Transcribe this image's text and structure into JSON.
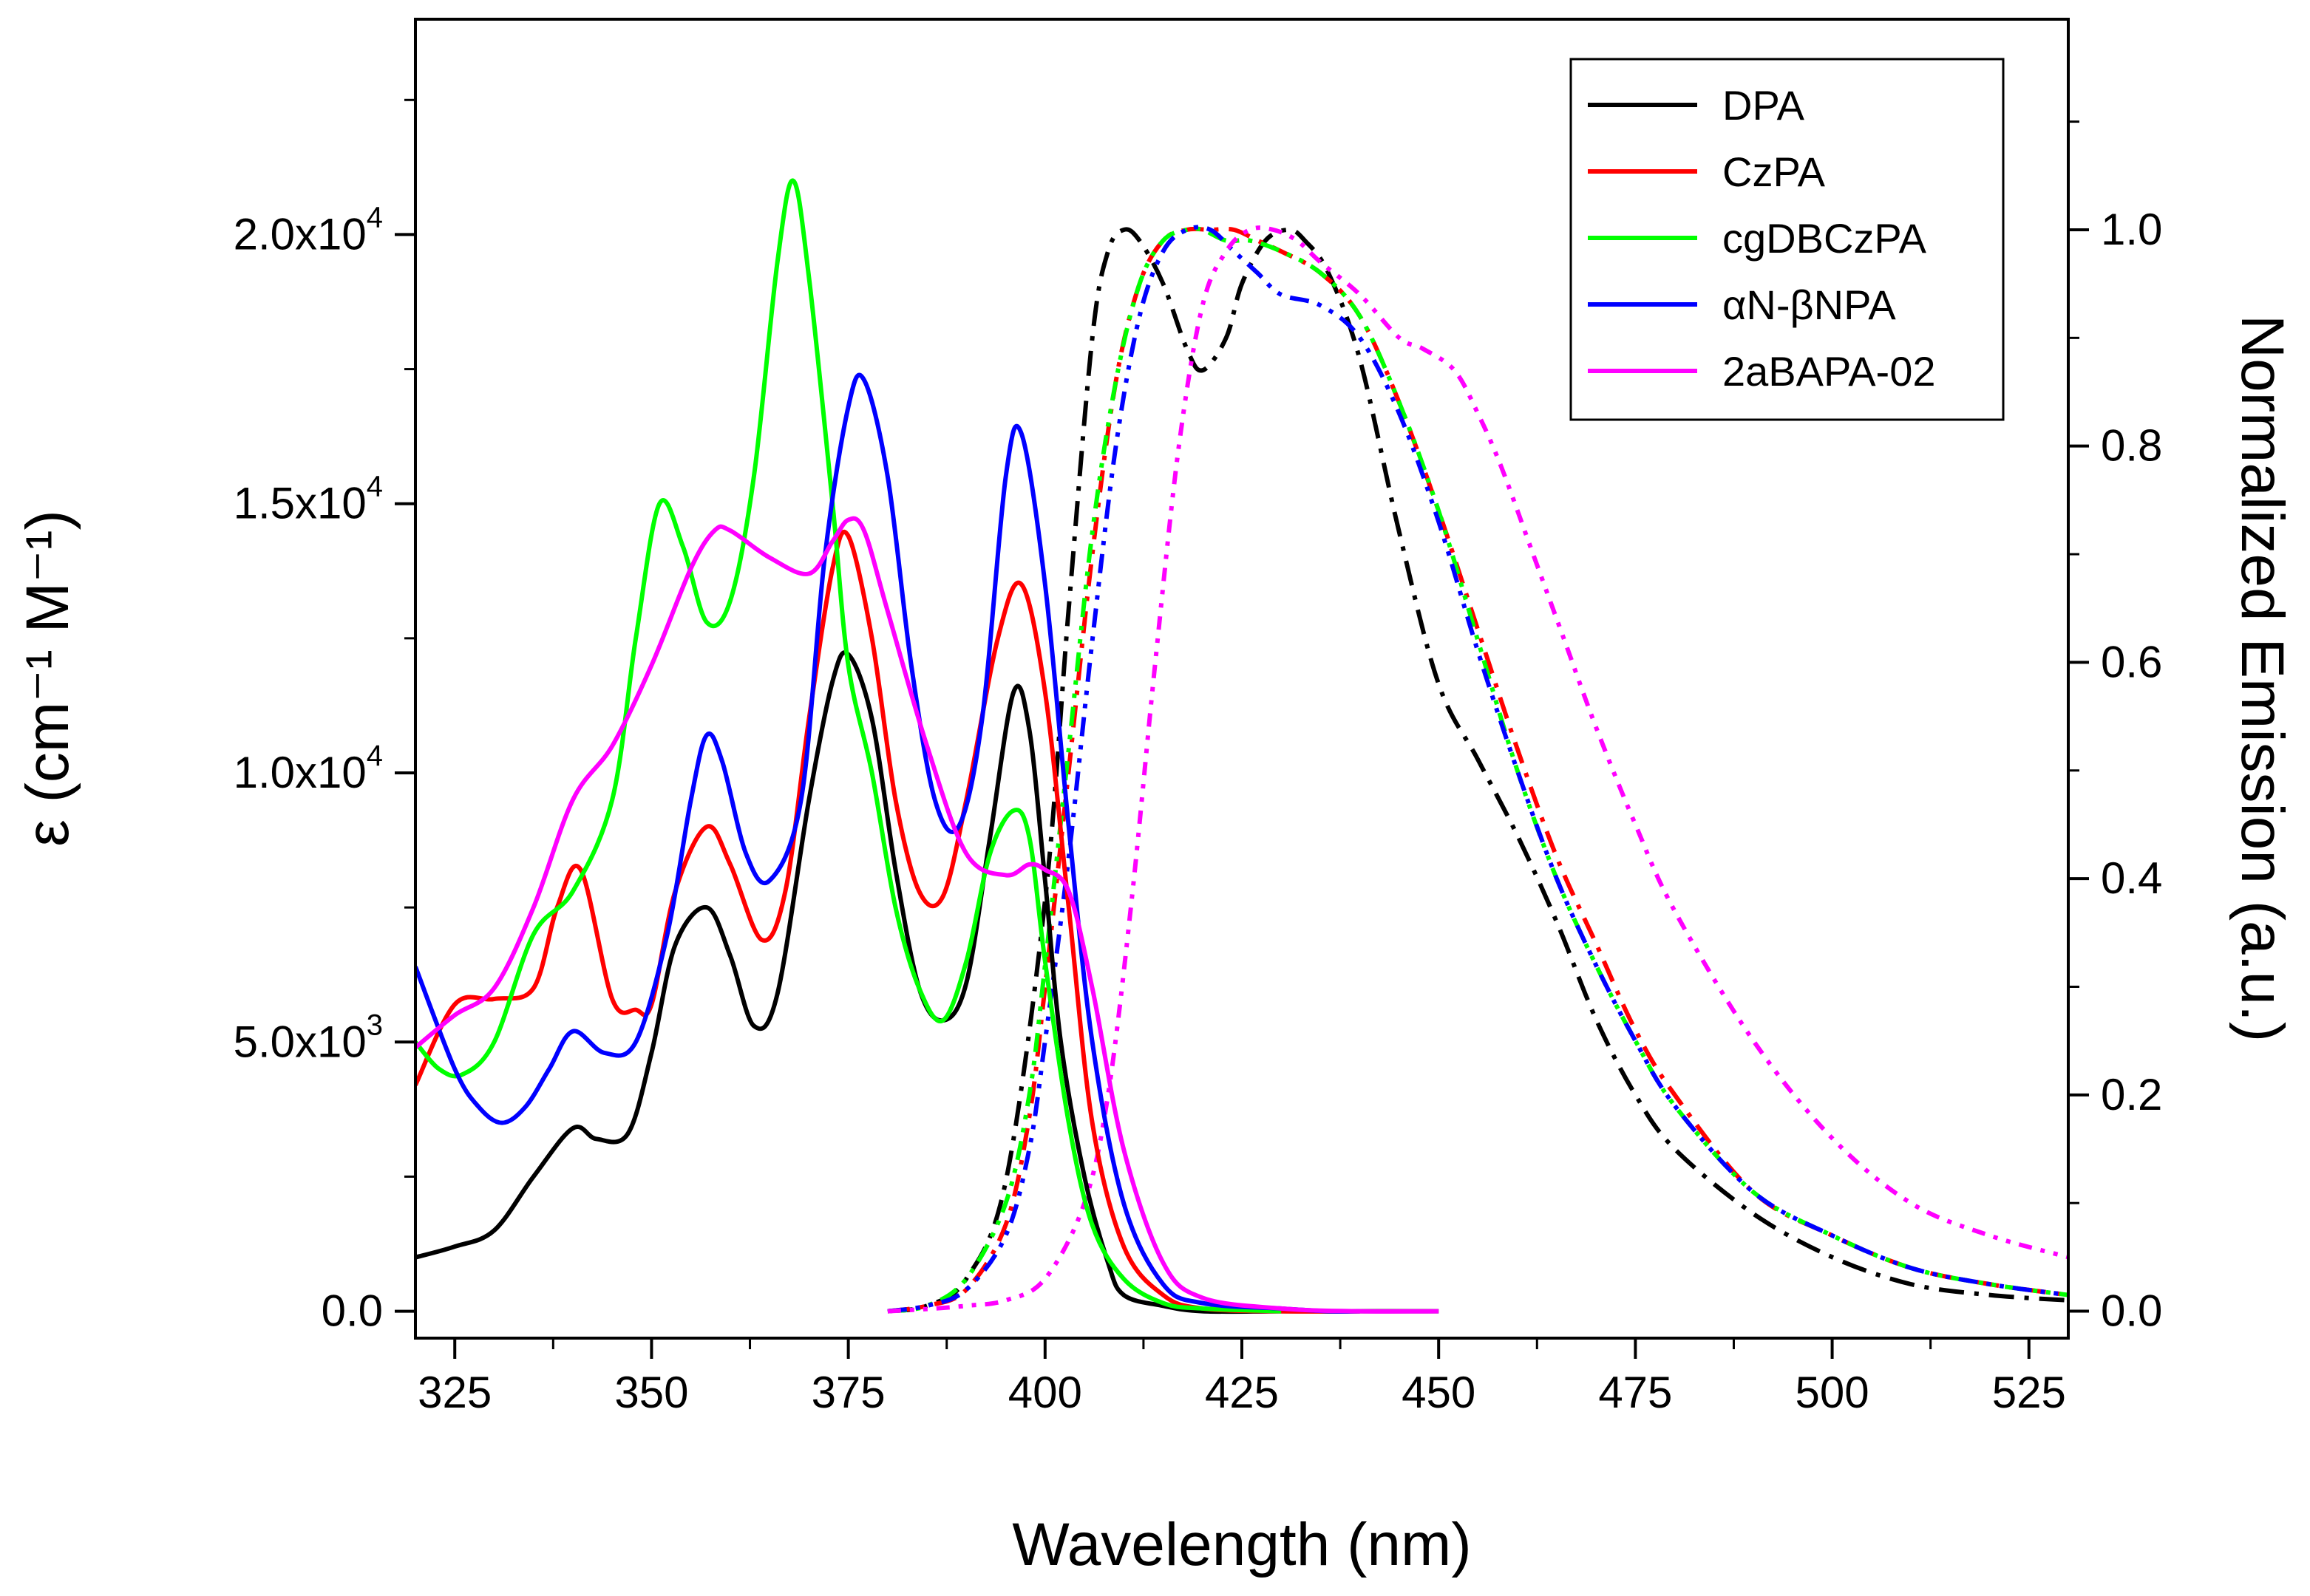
{
  "chart_data": {
    "type": "line",
    "xlabel": "Wavelength (nm)",
    "ylabel_left": "ε (cm⁻¹ M⁻¹)",
    "ylabel_right": "Normalized Emission (a.u.)",
    "xlim": [
      320,
      530
    ],
    "ylim_left": [
      -500,
      24000
    ],
    "ylim_right": [
      -0.0249,
      1.1947
    ],
    "x_ticks": [
      "325",
      "350",
      "375",
      "400",
      "425",
      "450",
      "475",
      "500",
      "525"
    ],
    "y_left_ticks": [
      {
        "value": 0,
        "mant": "0.0",
        "exp": ""
      },
      {
        "value": 5000,
        "mant": "5.0x10",
        "exp": "3"
      },
      {
        "value": 10000,
        "mant": "1.0x10",
        "exp": "4"
      },
      {
        "value": 15000,
        "mant": "1.5x10",
        "exp": "4"
      },
      {
        "value": 20000,
        "mant": "2.0x10",
        "exp": "4"
      }
    ],
    "y_right_ticks": [
      "0.0",
      "0.2",
      "0.4",
      "0.6",
      "0.8",
      "1.0"
    ],
    "legend": {
      "position": "top-right",
      "labels": [
        "DPA",
        "CzPA",
        "cgDBCzPA",
        "αN-βNPA",
        "2aBAPA-02"
      ]
    },
    "series": [
      {
        "name": "DPA",
        "color": "#000000",
        "absorption": {
          "x": [
            320,
            325,
            330,
            335,
            340,
            343,
            347,
            350,
            353,
            357,
            360,
            363,
            366,
            370,
            373,
            375,
            378,
            381,
            384,
            387,
            390,
            393,
            396,
            398,
            400,
            402,
            405,
            408,
            410,
            415,
            420,
            430,
            440,
            450
          ],
          "y": [
            1000,
            1200,
            1500,
            2500,
            3400,
            3200,
            3300,
            4800,
            6800,
            7500,
            6600,
            5300,
            5900,
            9500,
            11700,
            12200,
            11000,
            8200,
            6000,
            5400,
            6100,
            8800,
            11500,
            10800,
            8000,
            5000,
            2500,
            900,
            300,
            100,
            0,
            0,
            0,
            0
          ]
        },
        "emission": {
          "x": [
            380,
            385,
            390,
            395,
            400,
            403,
            406,
            408,
            410,
            412,
            415,
            418,
            420,
            423,
            425,
            428,
            431,
            433,
            436,
            440,
            445,
            450,
            455,
            460,
            465,
            470,
            475,
            480,
            490,
            500,
            510,
            520,
            530
          ],
          "y": [
            0,
            0.005,
            0.03,
            0.12,
            0.38,
            0.65,
            0.9,
            0.98,
            1.0,
            0.99,
            0.95,
            0.89,
            0.87,
            0.9,
            0.95,
            0.99,
            1.0,
            0.99,
            0.96,
            0.88,
            0.72,
            0.58,
            0.51,
            0.44,
            0.36,
            0.27,
            0.2,
            0.15,
            0.09,
            0.05,
            0.025,
            0.015,
            0.01
          ]
        }
      },
      {
        "name": "CzPA",
        "color": "#ff0000",
        "absorption": {
          "x": [
            320,
            325,
            330,
            335,
            338,
            341,
            345,
            348,
            350,
            353,
            357,
            360,
            364,
            367,
            370,
            373,
            375,
            378,
            381,
            384,
            387,
            390,
            394,
            397,
            400,
            403,
            406,
            410,
            415,
            420,
            430,
            440
          ],
          "y": [
            4200,
            5700,
            5800,
            6000,
            7500,
            8200,
            5800,
            5600,
            5700,
            7800,
            9000,
            8300,
            6900,
            7800,
            11000,
            13800,
            14400,
            12500,
            9500,
            7800,
            7700,
            9500,
            12500,
            13500,
            11500,
            7500,
            3500,
            1200,
            300,
            50,
            0,
            0
          ]
        },
        "emission": {
          "x": [
            380,
            385,
            390,
            395,
            398,
            400,
            403,
            406,
            409,
            412,
            415,
            418,
            421,
            424,
            427,
            430,
            435,
            440,
            445,
            450,
            455,
            460,
            465,
            470,
            475,
            480,
            490,
            500,
            510,
            520,
            530
          ],
          "y": [
            0,
            0.005,
            0.02,
            0.08,
            0.18,
            0.3,
            0.5,
            0.7,
            0.86,
            0.95,
            0.99,
            1.0,
            1.0,
            1.0,
            0.99,
            0.98,
            0.96,
            0.92,
            0.84,
            0.74,
            0.63,
            0.52,
            0.42,
            0.34,
            0.26,
            0.2,
            0.11,
            0.07,
            0.04,
            0.025,
            0.015
          ]
        }
      },
      {
        "name": "cgDBCzPA",
        "color": "#00ff00",
        "absorption": {
          "x": [
            320,
            323,
            326,
            330,
            335,
            340,
            345,
            348,
            351,
            354,
            357,
            360,
            363,
            366,
            368,
            370,
            373,
            375,
            378,
            381,
            384,
            387,
            390,
            393,
            396,
            398,
            400,
            403,
            406,
            410,
            415,
            420,
            430
          ],
          "y": [
            5000,
            4500,
            4400,
            5000,
            7000,
            7800,
            9500,
            12500,
            15000,
            14200,
            12800,
            13200,
            15500,
            19500,
            21000,
            19200,
            15000,
            12000,
            10000,
            7500,
            6000,
            5400,
            6500,
            8500,
            9300,
            8800,
            6500,
            3500,
            1600,
            600,
            150,
            50,
            0
          ]
        },
        "emission": {
          "x": [
            380,
            385,
            390,
            395,
            398,
            400,
            403,
            406,
            409,
            412,
            415,
            418,
            420,
            423,
            426,
            430,
            435,
            440,
            445,
            450,
            455,
            460,
            465,
            470,
            475,
            480,
            490,
            500,
            510,
            520,
            530
          ],
          "y": [
            0,
            0.005,
            0.03,
            0.1,
            0.2,
            0.32,
            0.52,
            0.72,
            0.86,
            0.95,
            0.99,
            1.0,
            1.0,
            0.99,
            0.99,
            0.98,
            0.96,
            0.92,
            0.84,
            0.74,
            0.62,
            0.5,
            0.4,
            0.32,
            0.25,
            0.19,
            0.11,
            0.07,
            0.04,
            0.025,
            0.015
          ]
        }
      },
      {
        "name": "αN-βNPA",
        "color": "#0000ff",
        "absorption": {
          "x": [
            320,
            325,
            328,
            331,
            334,
            337,
            340,
            344,
            348,
            352,
            355,
            357,
            359,
            362,
            365,
            369,
            372,
            375,
            377,
            380,
            383,
            386,
            389,
            392,
            395,
            397,
            400,
            403,
            406,
            410,
            415,
            420,
            430,
            436,
            440
          ],
          "y": [
            6400,
            4500,
            3800,
            3500,
            3800,
            4500,
            5200,
            4800,
            5000,
            7000,
            9500,
            10700,
            10200,
            8500,
            8000,
            9500,
            14000,
            16800,
            17300,
            15500,
            12000,
            9500,
            9000,
            11000,
            15500,
            16300,
            13500,
            9000,
            5000,
            2000,
            500,
            150,
            50,
            0,
            0
          ]
        },
        "emission": {
          "x": [
            380,
            385,
            390,
            395,
            398,
            400,
            403,
            406,
            409,
            412,
            415,
            418,
            421,
            424,
            427,
            430,
            435,
            440,
            445,
            450,
            455,
            460,
            465,
            470,
            475,
            480,
            490,
            500,
            510,
            520,
            530
          ],
          "y": [
            0,
            0.005,
            0.02,
            0.07,
            0.15,
            0.25,
            0.42,
            0.62,
            0.8,
            0.92,
            0.98,
            1.0,
            1.0,
            0.98,
            0.96,
            0.94,
            0.93,
            0.9,
            0.83,
            0.73,
            0.61,
            0.5,
            0.4,
            0.32,
            0.25,
            0.19,
            0.11,
            0.07,
            0.04,
            0.025,
            0.015
          ]
        }
      },
      {
        "name": "2aBAPA-02",
        "color": "#ff00ff",
        "absorption": {
          "x": [
            320,
            325,
            330,
            335,
            340,
            345,
            350,
            355,
            358,
            360,
            365,
            370,
            373,
            375,
            377,
            380,
            385,
            390,
            395,
            398,
            400,
            403,
            406,
            410,
            415,
            420,
            430,
            440,
            450
          ],
          "y": [
            4900,
            5500,
            6000,
            7500,
            9500,
            10500,
            12000,
            13800,
            14500,
            14500,
            14000,
            13700,
            14300,
            14700,
            14500,
            13000,
            10500,
            8500,
            8100,
            8300,
            8200,
            7800,
            6000,
            3000,
            900,
            250,
            50,
            0,
            0
          ]
        },
        "emission": {
          "x": [
            380,
            385,
            390,
            395,
            400,
            405,
            408,
            411,
            414,
            417,
            420,
            423,
            426,
            429,
            432,
            435,
            440,
            445,
            448,
            452,
            455,
            458,
            462,
            466,
            470,
            475,
            480,
            490,
            500,
            510,
            520,
            530
          ],
          "y": [
            0,
            0.002,
            0.005,
            0.01,
            0.03,
            0.1,
            0.2,
            0.38,
            0.6,
            0.8,
            0.93,
            0.98,
            1.0,
            1.0,
            0.99,
            0.97,
            0.94,
            0.9,
            0.89,
            0.87,
            0.83,
            0.78,
            0.7,
            0.62,
            0.54,
            0.45,
            0.37,
            0.25,
            0.16,
            0.1,
            0.07,
            0.05
          ]
        }
      }
    ]
  }
}
